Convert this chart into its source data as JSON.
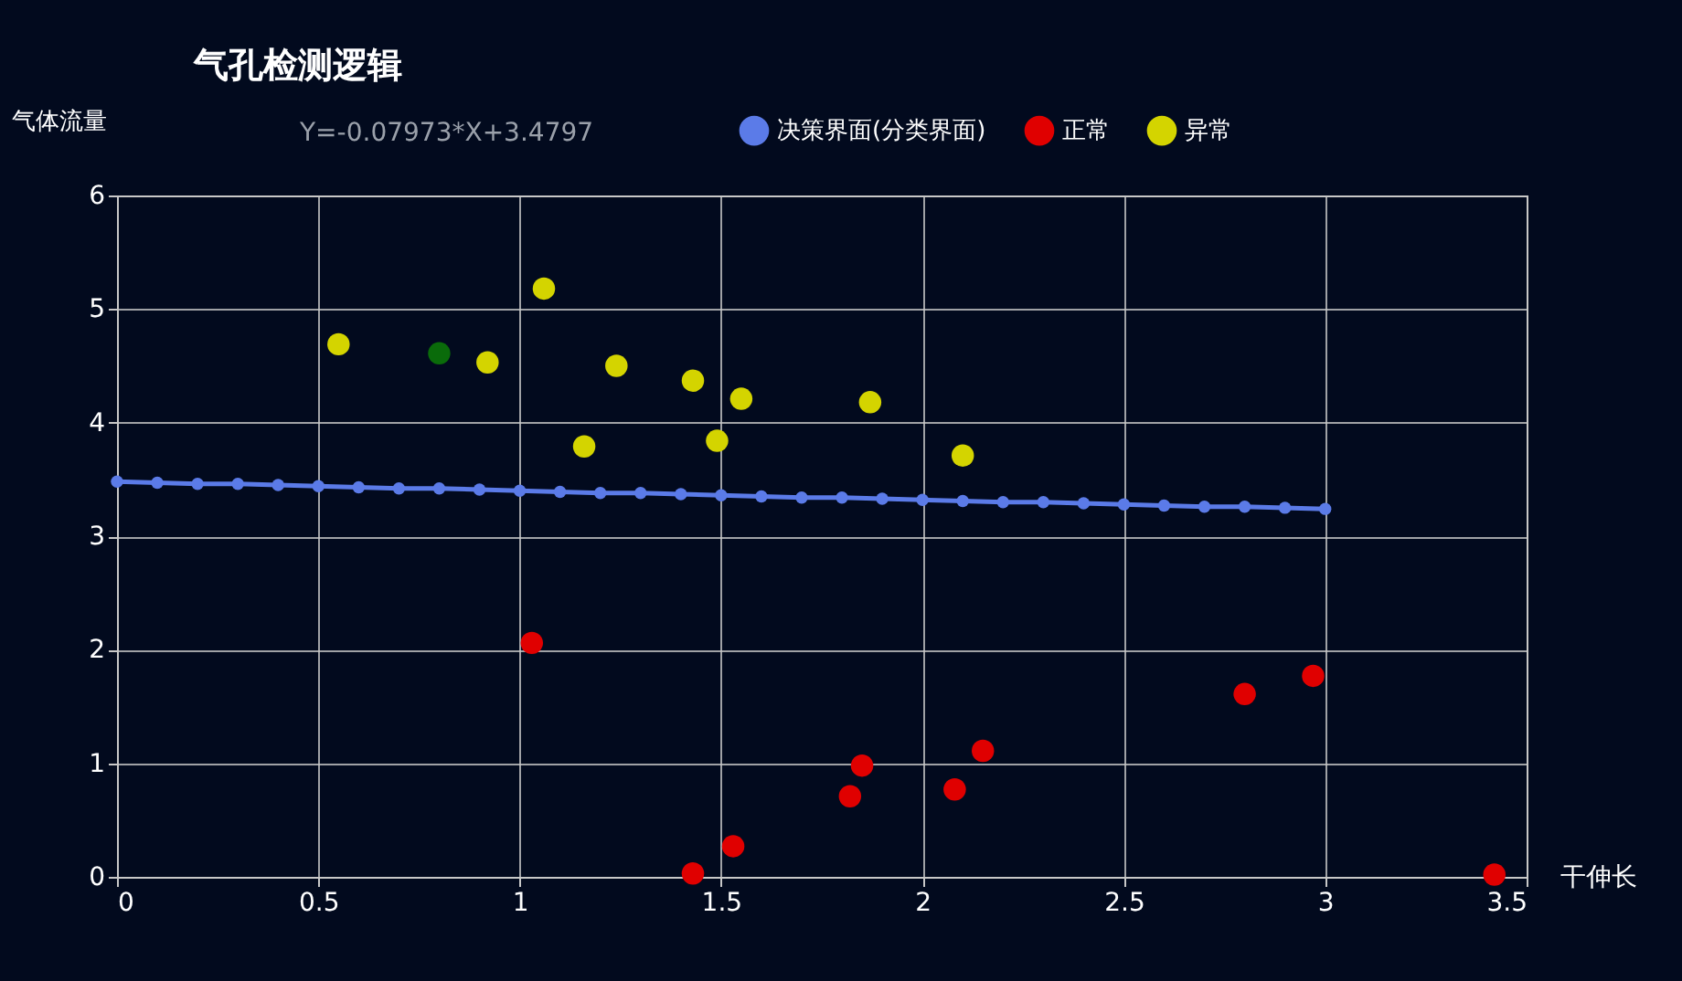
{
  "chart_data": {
    "type": "scatter",
    "title": "气孔检测逻辑",
    "xlabel": "干伸长",
    "ylabel": "气体流量",
    "annotations": [
      "Y=-0.07973*X+3.4797"
    ],
    "xlim": [
      0,
      3.5
    ],
    "xticks": [
      0,
      0.5,
      1,
      1.5,
      2,
      2.5,
      3,
      3.5
    ],
    "ylim": [
      0,
      6
    ],
    "yticks": [
      0,
      1,
      2,
      3,
      4,
      5,
      6
    ],
    "grid": true,
    "legend": "top",
    "marker": "circle",
    "series": [
      {
        "name": "决策界面(分类界面)",
        "type": "line",
        "color": "#5b7be8",
        "x": [
          0,
          0.1,
          0.2,
          0.3,
          0.4,
          0.5,
          0.6,
          0.7,
          0.8,
          0.9,
          1,
          1.1,
          1.2,
          1.3,
          1.4,
          1.5,
          1.6,
          1.7,
          1.8,
          1.9,
          2,
          2.1,
          2.2,
          2.3,
          2.4,
          2.5,
          2.6,
          2.7,
          2.8,
          2.9,
          3
        ],
        "values": [
          3.48,
          3.47,
          3.46,
          3.46,
          3.45,
          3.44,
          3.43,
          3.42,
          3.42,
          3.41,
          3.4,
          3.39,
          3.38,
          3.38,
          3.37,
          3.36,
          3.35,
          3.34,
          3.34,
          3.33,
          3.32,
          3.31,
          3.3,
          3.3,
          3.29,
          3.28,
          3.27,
          3.26,
          3.26,
          3.25,
          3.24
        ]
      },
      {
        "name": "正常",
        "color": "#e00000",
        "x": [
          1.03,
          1.43,
          1.53,
          1.82,
          1.85,
          2.08,
          2.15,
          2.8,
          2.97,
          3.42
        ],
        "values": [
          2.06,
          0.03,
          0.27,
          0.71,
          0.98,
          0.77,
          1.11,
          1.61,
          1.77,
          0.02
        ]
      },
      {
        "name": "异常",
        "color": "#d4d400",
        "x": [
          0.55,
          0.92,
          1.06,
          1.16,
          1.24,
          1.43,
          1.49,
          1.55,
          1.87,
          2.1
        ],
        "values": [
          4.69,
          4.53,
          5.18,
          3.79,
          4.5,
          4.37,
          3.84,
          4.21,
          4.18,
          3.71
        ]
      },
      {
        "color": "#0a6b0a",
        "x": [
          0.8
        ],
        "values": [
          4.61
        ]
      }
    ]
  }
}
